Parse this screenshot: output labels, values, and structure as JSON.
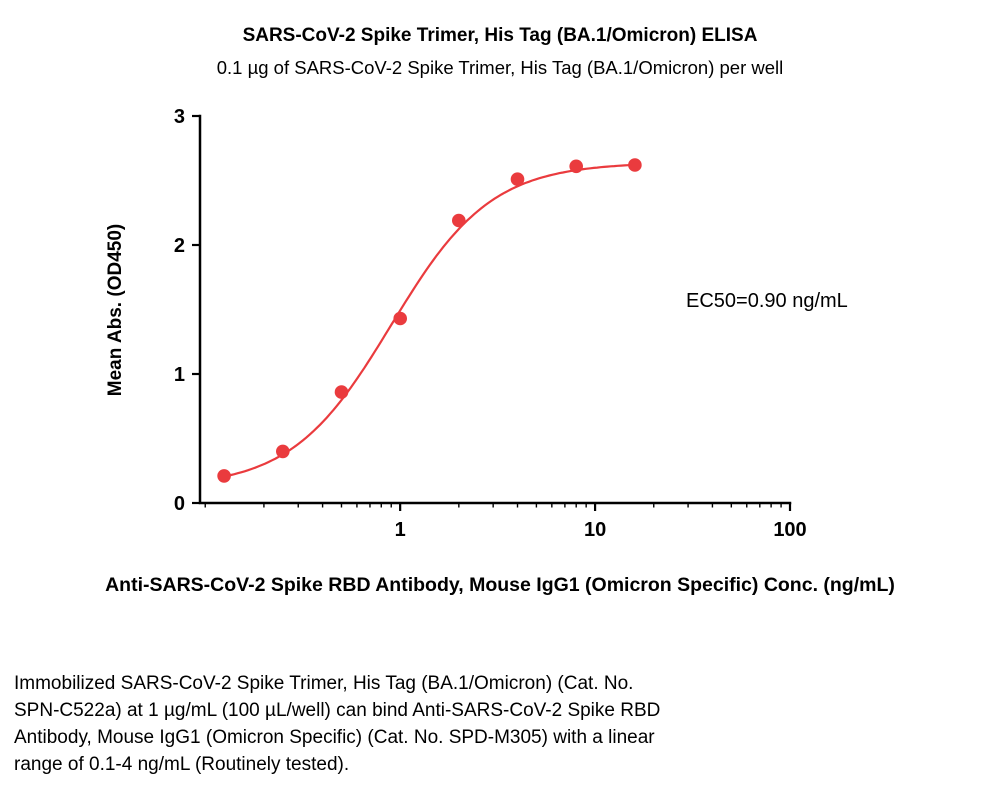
{
  "figure": {
    "title": "SARS-CoV-2 Spike Trimer, His Tag (BA.1/Omicron) ELISA",
    "subtitle": "0.1 µg of SARS-CoV-2 Spike Trimer, His Tag (BA.1/Omicron) per well",
    "ylabel": "Mean Abs. (OD450)",
    "xlabel": "Anti-SARS-CoV-2 Spike RBD Antibody, Mouse IgG1 (Omicron Specific) Conc. (ng/mL)",
    "annotation": "EC50=0.90 ng/mL",
    "caption_lines": [
      "Immobilized SARS-CoV-2 Spike Trimer, His Tag (BA.1/Omicron) (Cat. No.",
      "SPN-C522a) at 1 µg/mL (100 µL/well) can bind Anti-SARS-CoV-2 Spike RBD",
      "Antibody, Mouse IgG1 (Omicron Specific) (Cat. No. SPD-M305) with a linear",
      "range of 0.1-4 ng/mL (Routinely tested)."
    ]
  },
  "chart_data": {
    "type": "scatter",
    "title": "SARS-CoV-2 Spike Trimer, His Tag (BA.1/Omicron) ELISA",
    "subtitle": "0.1 µg of SARS-CoV-2 Spike Trimer, His Tag (BA.1/Omicron) per well",
    "xlabel": "Anti-SARS-CoV-2 Spike RBD Antibody, Mouse IgG1 (Omicron Specific) Conc. (ng/mL)",
    "ylabel": "Mean Abs. (OD450)",
    "x_scale": "log10",
    "x": [
      0.125,
      0.25,
      0.5,
      1,
      2,
      4,
      8,
      16
    ],
    "y": [
      0.21,
      0.4,
      0.86,
      1.43,
      2.19,
      2.51,
      2.61,
      2.62
    ],
    "xlim": [
      0.094,
      100
    ],
    "ylim": [
      0,
      3
    ],
    "x_ticks": [
      1,
      10,
      100
    ],
    "y_ticks": [
      0,
      1,
      2,
      3
    ],
    "grid": false,
    "legend": "none",
    "annotation": "EC50=0.90 ng/mL",
    "ec50_ng_ml": 0.9,
    "curve_fit": {
      "model": "4PL",
      "bottom": 0.12,
      "top": 2.64,
      "ec50": 0.9,
      "hill": 1.7
    },
    "point_color": "#ea3b3e",
    "line_color": "#ea3b3e"
  }
}
